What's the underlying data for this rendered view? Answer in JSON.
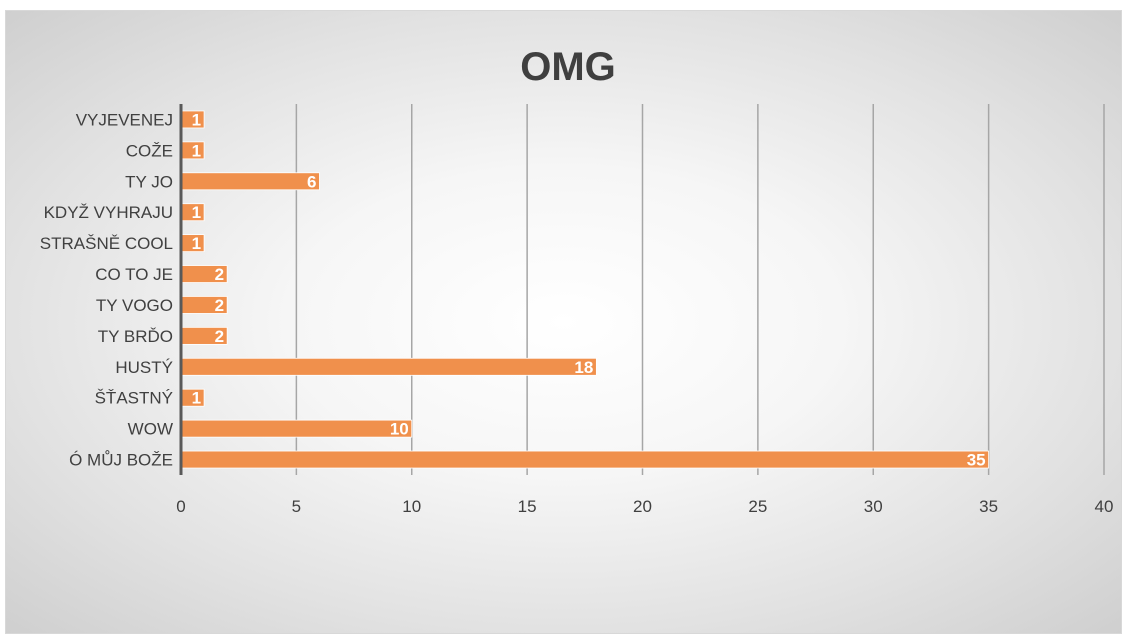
{
  "chart_data": {
    "type": "bar",
    "orientation": "horizontal",
    "title": "OMG",
    "xlabel": "",
    "ylabel": "",
    "categories": [
      "VYJEVENEJ",
      "COŽE",
      "TY JO",
      "KDYŽ VYHRAJU",
      "STRAŠNĚ COOL",
      "CO TO JE",
      "TY VOGO",
      "TY BRĎO",
      "HUSTÝ",
      "ŠŤASTNÝ",
      "WOW",
      "Ó MŮJ BOŽE"
    ],
    "values": [
      1,
      1,
      6,
      1,
      1,
      2,
      2,
      2,
      18,
      1,
      10,
      35
    ],
    "xlim": [
      0,
      40
    ],
    "xticks": [
      "0",
      "5",
      "10",
      "15",
      "20",
      "25",
      "30",
      "35",
      "40"
    ],
    "grid": "vertical",
    "legend": "none",
    "data_labels": "inside-end",
    "colors": {
      "bar": "#f0904c",
      "bar_edge": "#ffffff",
      "title": "#3f3f3f",
      "text": "#404040",
      "grid": "#a6a6a6",
      "axis": "#595959"
    }
  }
}
